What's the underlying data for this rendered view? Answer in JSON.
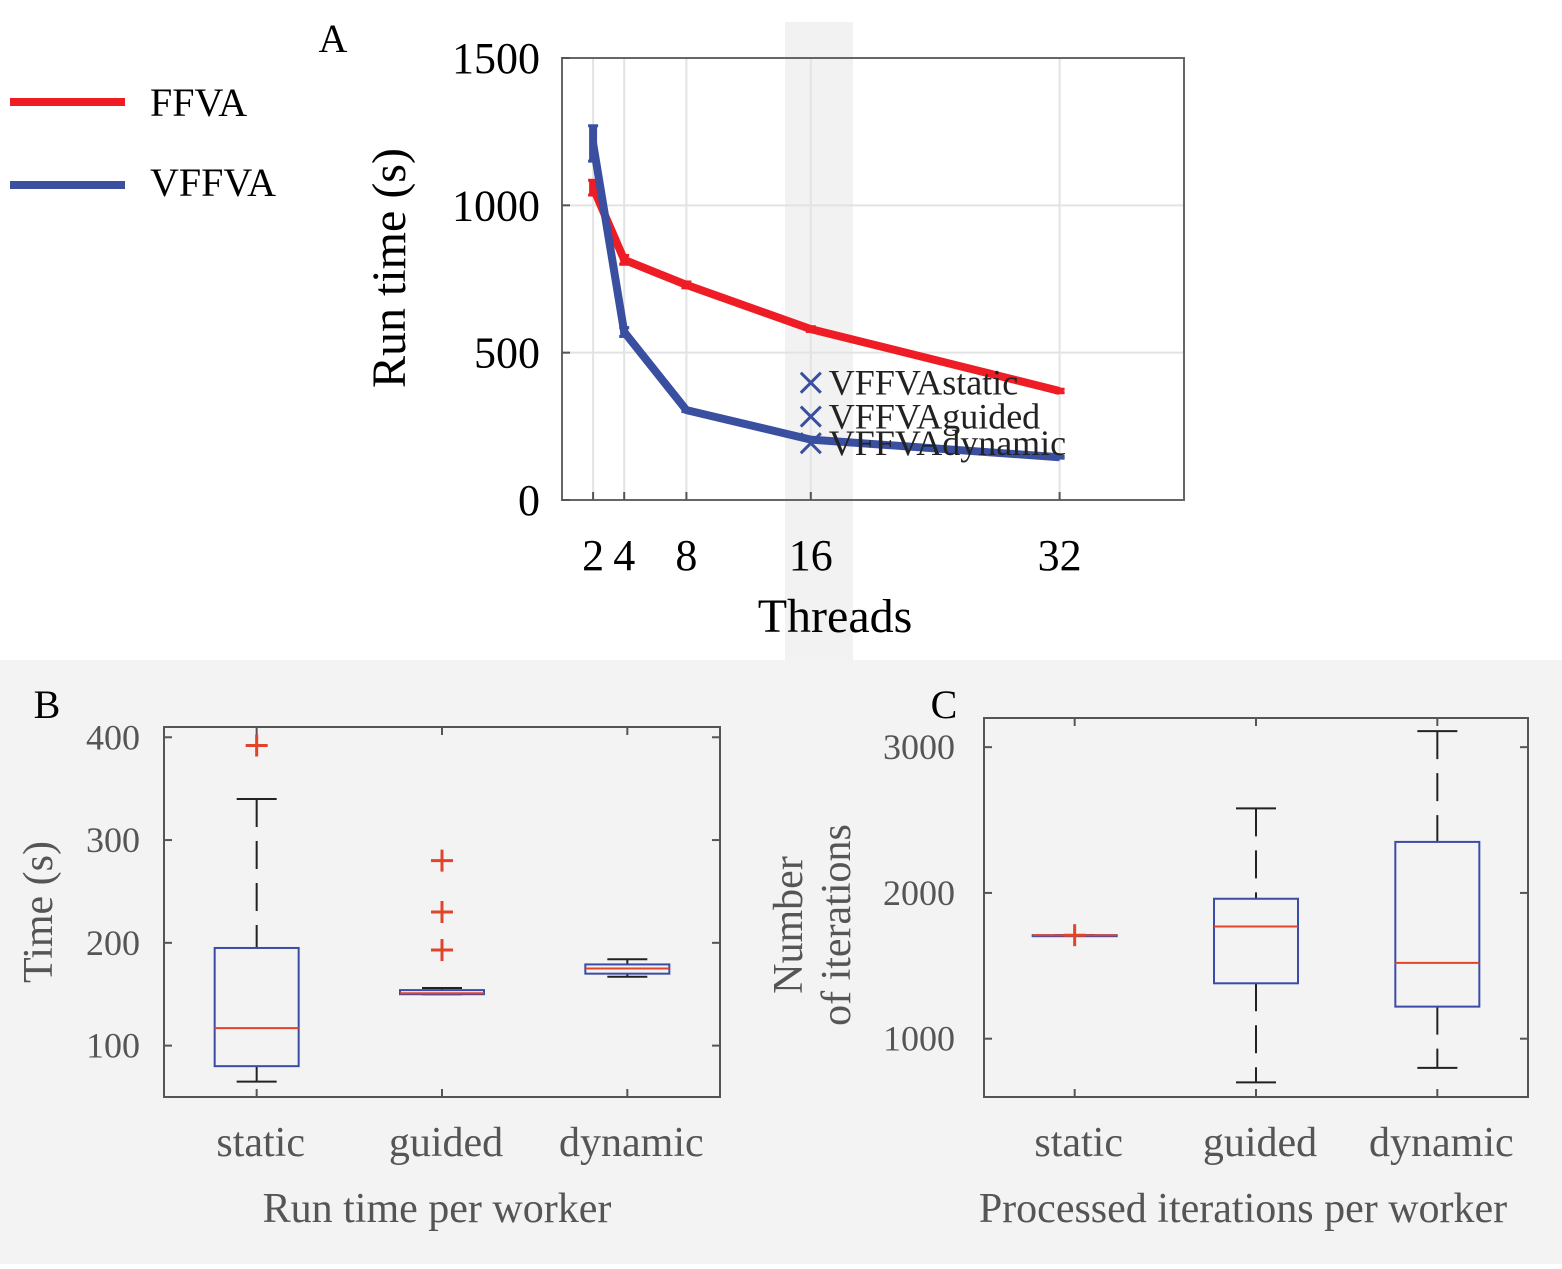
{
  "chart_data": [
    {
      "type": "line",
      "panel_label": "A",
      "xlabel": "Threads",
      "ylabel": "Run time (s)",
      "xticks": [
        2,
        4,
        8,
        16,
        32
      ],
      "xtick_labels": [
        "2",
        "4",
        "8",
        "16",
        "32"
      ],
      "yticks": [
        0,
        500,
        1000,
        1500
      ],
      "ytick_labels": [
        "0",
        "500",
        "1000",
        "1500"
      ],
      "xlim": [
        0,
        40
      ],
      "ylim": [
        0,
        1500
      ],
      "grid": true,
      "highlight_band_x": 16,
      "legend_position": "outside-left",
      "series": [
        {
          "name": "FFVA",
          "color": "#ee1c25",
          "x": [
            2,
            4,
            8,
            16,
            32
          ],
          "y": [
            1060,
            815,
            730,
            580,
            370
          ],
          "err": [
            25,
            15,
            10,
            8,
            6
          ]
        },
        {
          "name": "VFFVA",
          "color": "#3a4fa0",
          "x": [
            2,
            4,
            8,
            16,
            32
          ],
          "y": [
            1210,
            570,
            305,
            205,
            145
          ],
          "err": [
            60,
            15,
            5,
            5,
            3
          ]
        }
      ],
      "markers": [
        {
          "label": "VFFVAstatic",
          "x": 16,
          "y": 398
        },
        {
          "label": "VFFVAguided",
          "x": 16,
          "y": 283
        },
        {
          "label": "VFFVAdynamic",
          "x": 16,
          "y": 193
        }
      ]
    },
    {
      "type": "box",
      "panel_label": "B",
      "xlabel": "Run time per worker",
      "ylabel": "Time (s)",
      "categories": [
        "static",
        "guided",
        "dynamic"
      ],
      "yticks": [
        100,
        200,
        300,
        400
      ],
      "ytick_labels": [
        "100",
        "200",
        "300",
        "400"
      ],
      "ylim": [
        50,
        410
      ],
      "boxes": [
        {
          "whisker_low": 65,
          "q1": 80,
          "median": 117,
          "q3": 195,
          "whisker_high": 340,
          "outliers": [
            392
          ]
        },
        {
          "whisker_low": 150,
          "q1": 150,
          "median": 151,
          "q3": 154,
          "whisker_high": 156,
          "outliers": [
            193,
            230,
            280
          ]
        },
        {
          "whisker_low": 167,
          "q1": 170,
          "median": 175,
          "q3": 179,
          "whisker_high": 184,
          "outliers": []
        }
      ]
    },
    {
      "type": "box",
      "panel_label": "C",
      "xlabel": "Processed iterations per worker",
      "ylabel_lines": [
        "Number",
        "of iterations"
      ],
      "categories": [
        "static",
        "guided",
        "dynamic"
      ],
      "yticks": [
        1000,
        2000,
        3000
      ],
      "ytick_labels": [
        "1000",
        "2000",
        "3000"
      ],
      "ylim": [
        600,
        3200
      ],
      "boxes": [
        {
          "whisker_low": 1710,
          "q1": 1710,
          "median": 1710,
          "q3": 1710,
          "whisker_high": 1710,
          "outliers": [
            1710
          ]
        },
        {
          "whisker_low": 700,
          "q1": 1380,
          "median": 1770,
          "q3": 1960,
          "whisker_high": 2580,
          "outliers": []
        },
        {
          "whisker_low": 800,
          "q1": 1220,
          "median": 1520,
          "q3": 2350,
          "whisker_high": 3110,
          "outliers": []
        }
      ]
    }
  ]
}
